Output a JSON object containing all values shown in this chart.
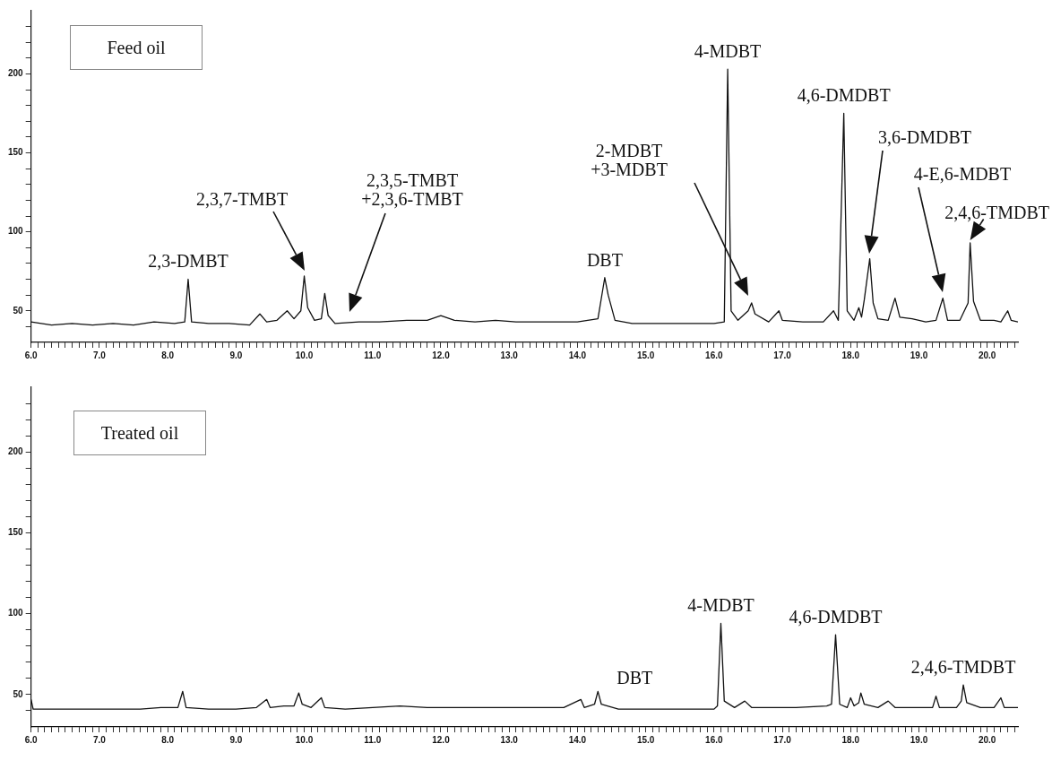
{
  "chart_data": [
    {
      "type": "line",
      "title": "Feed oil",
      "xlim": [
        6.0,
        20.45
      ],
      "ylim": [
        30,
        240
      ],
      "xticks": [
        {
          "value": 6.0,
          "label": "6.0"
        },
        {
          "value": 6.1,
          "label": null
        },
        {
          "value": 6.2,
          "label": null
        },
        {
          "value": 6.3,
          "label": null
        },
        {
          "value": 6.4,
          "label": null
        },
        {
          "value": 6.5,
          "label": null
        },
        {
          "value": 6.6,
          "label": null
        },
        {
          "value": 6.7,
          "label": null
        },
        {
          "value": 6.8,
          "label": null
        },
        {
          "value": 6.9,
          "label": null
        },
        {
          "value": 7.0,
          "label": "7.0"
        },
        {
          "value": 7.1,
          "label": null
        },
        {
          "value": 7.2,
          "label": null
        },
        {
          "value": 7.3,
          "label": null
        },
        {
          "value": 7.4,
          "label": null
        },
        {
          "value": 7.5,
          "label": null
        },
        {
          "value": 7.6,
          "label": null
        },
        {
          "value": 7.7,
          "label": null
        },
        {
          "value": 7.8,
          "label": null
        },
        {
          "value": 7.9,
          "label": null
        },
        {
          "value": 8.0,
          "label": "8.0"
        },
        {
          "value": 8.1,
          "label": null
        },
        {
          "value": 8.2,
          "label": null
        },
        {
          "value": 8.3,
          "label": null
        },
        {
          "value": 8.4,
          "label": null
        },
        {
          "value": 8.5,
          "label": null
        },
        {
          "value": 8.6,
          "label": null
        },
        {
          "value": 8.7,
          "label": null
        },
        {
          "value": 8.8,
          "label": null
        },
        {
          "value": 8.9,
          "label": null
        },
        {
          "value": 9.0,
          "label": "9.0"
        },
        {
          "value": 9.1,
          "label": null
        },
        {
          "value": 9.2,
          "label": null
        },
        {
          "value": 9.3,
          "label": null
        },
        {
          "value": 9.4,
          "label": null
        },
        {
          "value": 9.5,
          "label": null
        },
        {
          "value": 9.6,
          "label": null
        },
        {
          "value": 9.7,
          "label": null
        },
        {
          "value": 9.8,
          "label": null
        },
        {
          "value": 9.9,
          "label": null
        },
        {
          "value": 10.0,
          "label": "10.0"
        },
        {
          "value": 10.1,
          "label": null
        },
        {
          "value": 10.2,
          "label": null
        },
        {
          "value": 10.3,
          "label": null
        },
        {
          "value": 10.4,
          "label": null
        },
        {
          "value": 10.5,
          "label": null
        },
        {
          "value": 10.6,
          "label": null
        },
        {
          "value": 10.7,
          "label": null
        },
        {
          "value": 10.8,
          "label": null
        },
        {
          "value": 10.9,
          "label": null
        },
        {
          "value": 11.0,
          "label": "11.0"
        },
        {
          "value": 11.1,
          "label": null
        },
        {
          "value": 11.2,
          "label": null
        },
        {
          "value": 11.3,
          "label": null
        },
        {
          "value": 11.4,
          "label": null
        },
        {
          "value": 11.5,
          "label": null
        },
        {
          "value": 11.6,
          "label": null
        },
        {
          "value": 11.7,
          "label": null
        },
        {
          "value": 11.8,
          "label": null
        },
        {
          "value": 11.9,
          "label": null
        },
        {
          "value": 12.0,
          "label": "12.0"
        },
        {
          "value": 12.1,
          "label": null
        },
        {
          "value": 12.2,
          "label": null
        },
        {
          "value": 12.3,
          "label": null
        },
        {
          "value": 12.4,
          "label": null
        },
        {
          "value": 12.5,
          "label": null
        },
        {
          "value": 12.6,
          "label": null
        },
        {
          "value": 12.7,
          "label": null
        },
        {
          "value": 12.8,
          "label": null
        },
        {
          "value": 12.9,
          "label": null
        },
        {
          "value": 13.0,
          "label": "13.0"
        },
        {
          "value": 13.1,
          "label": null
        },
        {
          "value": 13.2,
          "label": null
        },
        {
          "value": 13.3,
          "label": null
        },
        {
          "value": 13.4,
          "label": null
        },
        {
          "value": 13.5,
          "label": null
        },
        {
          "value": 13.6,
          "label": null
        },
        {
          "value": 13.7,
          "label": null
        },
        {
          "value": 13.8,
          "label": null
        },
        {
          "value": 13.9,
          "label": null
        },
        {
          "value": 14.0,
          "label": "14.0"
        },
        {
          "value": 14.1,
          "label": null
        },
        {
          "value": 14.2,
          "label": null
        },
        {
          "value": 14.3,
          "label": null
        },
        {
          "value": 14.4,
          "label": null
        },
        {
          "value": 14.5,
          "label": null
        },
        {
          "value": 14.6,
          "label": null
        },
        {
          "value": 14.7,
          "label": null
        },
        {
          "value": 14.8,
          "label": null
        },
        {
          "value": 14.9,
          "label": null
        },
        {
          "value": 15.0,
          "label": "15.0"
        },
        {
          "value": 15.1,
          "label": null
        },
        {
          "value": 15.2,
          "label": null
        },
        {
          "value": 15.3,
          "label": null
        },
        {
          "value": 15.4,
          "label": null
        },
        {
          "value": 15.5,
          "label": null
        },
        {
          "value": 15.6,
          "label": null
        },
        {
          "value": 15.7,
          "label": null
        },
        {
          "value": 15.8,
          "label": null
        },
        {
          "value": 15.9,
          "label": null
        },
        {
          "value": 16.0,
          "label": "16.0"
        },
        {
          "value": 16.1,
          "label": null
        },
        {
          "value": 16.2,
          "label": null
        },
        {
          "value": 16.3,
          "label": null
        },
        {
          "value": 16.4,
          "label": null
        },
        {
          "value": 16.5,
          "label": null
        },
        {
          "value": 16.6,
          "label": null
        },
        {
          "value": 16.7,
          "label": null
        },
        {
          "value": 16.8,
          "label": null
        },
        {
          "value": 16.9,
          "label": null
        },
        {
          "value": 17.0,
          "label": "17.0"
        },
        {
          "value": 17.1,
          "label": null
        },
        {
          "value": 17.2,
          "label": null
        },
        {
          "value": 17.3,
          "label": null
        },
        {
          "value": 17.4,
          "label": null
        },
        {
          "value": 17.5,
          "label": null
        },
        {
          "value": 17.6,
          "label": null
        },
        {
          "value": 17.7,
          "label": null
        },
        {
          "value": 17.8,
          "label": null
        },
        {
          "value": 17.9,
          "label": null
        },
        {
          "value": 18.0,
          "label": "18.0"
        },
        {
          "value": 18.1,
          "label": null
        },
        {
          "value": 18.2,
          "label": null
        },
        {
          "value": 18.3,
          "label": null
        },
        {
          "value": 18.4,
          "label": null
        },
        {
          "value": 18.5,
          "label": null
        },
        {
          "value": 18.6,
          "label": null
        },
        {
          "value": 18.7,
          "label": null
        },
        {
          "value": 18.8,
          "label": null
        },
        {
          "value": 18.9,
          "label": null
        },
        {
          "value": 19.0,
          "label": "19.0"
        },
        {
          "value": 19.1,
          "label": null
        },
        {
          "value": 19.2,
          "label": null
        },
        {
          "value": 19.3,
          "label": null
        },
        {
          "value": 19.4,
          "label": null
        },
        {
          "value": 19.5,
          "label": null
        },
        {
          "value": 19.6,
          "label": null
        },
        {
          "value": 19.7,
          "label": null
        },
        {
          "value": 19.8,
          "label": null
        },
        {
          "value": 19.9,
          "label": null
        },
        {
          "value": 20.0,
          "label": "20.0"
        },
        {
          "value": 20.1,
          "label": null
        },
        {
          "value": 20.2,
          "label": null
        },
        {
          "value": 20.3,
          "label": null
        },
        {
          "value": 20.4,
          "label": null
        }
      ],
      "yticks": [
        {
          "value": 40,
          "label": null
        },
        50,
        {
          "value": 60,
          "label": null
        },
        {
          "value": 70,
          "label": null
        },
        {
          "value": 80,
          "label": null
        },
        {
          "value": 90,
          "label": null
        },
        100,
        {
          "value": 110,
          "label": null
        },
        {
          "value": 120,
          "label": null
        },
        {
          "value": 130,
          "label": null
        },
        {
          "value": 140,
          "label": null
        },
        150,
        {
          "value": 160,
          "label": null
        },
        {
          "value": 170,
          "label": null
        },
        {
          "value": 180,
          "label": null
        },
        {
          "value": 190,
          "label": null
        },
        200,
        {
          "value": 210,
          "label": null
        },
        {
          "value": 220,
          "label": null
        },
        {
          "value": 230,
          "label": null
        }
      ],
      "grid": false,
      "legend": false,
      "marker": "none",
      "line_style": "solid",
      "series": [
        {
          "color": "#111111",
          "x": [
            6.0,
            6.3,
            6.6,
            6.9,
            7.2,
            7.5,
            7.8,
            8.1,
            8.25,
            8.3,
            8.35,
            8.6,
            8.9,
            9.2,
            9.35,
            9.45,
            9.6,
            9.75,
            9.85,
            9.95,
            10.0,
            10.05,
            10.15,
            10.25,
            10.3,
            10.35,
            10.45,
            10.8,
            11.1,
            11.5,
            11.8,
            12.0,
            12.2,
            12.5,
            12.8,
            13.1,
            13.4,
            13.7,
            14.0,
            14.3,
            14.4,
            14.45,
            14.55,
            14.8,
            15.1,
            15.4,
            15.7,
            16.0,
            16.15,
            16.2,
            16.25,
            16.35,
            16.5,
            16.55,
            16.6,
            16.8,
            16.95,
            17.0,
            17.3,
            17.6,
            17.75,
            17.82,
            17.9,
            17.95,
            18.05,
            18.12,
            18.16,
            18.2,
            18.28,
            18.33,
            18.4,
            18.55,
            18.65,
            18.72,
            18.9,
            19.1,
            19.25,
            19.35,
            19.42,
            19.6,
            19.72,
            19.75,
            19.8,
            19.9,
            20.1,
            20.2,
            20.3,
            20.35,
            20.45
          ],
          "values": [
            43,
            41,
            42,
            41,
            42,
            41,
            43,
            42,
            43,
            70,
            43,
            42,
            42,
            41,
            48,
            43,
            44,
            50,
            45,
            50,
            72,
            52,
            44,
            45,
            61,
            47,
            42,
            43,
            43,
            44,
            44,
            47,
            44,
            43,
            44,
            43,
            43,
            43,
            43,
            45,
            71,
            60,
            44,
            42,
            42,
            42,
            42,
            42,
            43,
            203,
            50,
            44,
            50,
            55,
            48,
            43,
            50,
            44,
            43,
            43,
            50,
            44,
            175,
            50,
            44,
            52,
            46,
            57,
            83,
            55,
            45,
            44,
            58,
            46,
            45,
            43,
            44,
            58,
            44,
            44,
            55,
            93,
            56,
            44,
            44,
            43,
            50,
            44,
            43
          ]
        }
      ],
      "annotations": [
        {
          "text": "2,3-DMBT",
          "x": 8.3,
          "y": 70
        },
        "2,3,7-TMBT",
        "2,3,5-TMBT\n+2,3,6-TMBT",
        {
          "text": "DBT",
          "x": 14.4,
          "y": 71
        },
        {
          "text": "4-MDBT",
          "x": 16.2,
          "y": 203
        },
        "2-MDBT\n+3-MDBT",
        {
          "text": "4,6-DMDBT",
          "x": 17.9,
          "y": 175
        },
        "3,6-DMDBT",
        "4-E,6-MDBT",
        {
          "text": "2,4,6-TMDBT",
          "x": 19.75,
          "y": 93
        }
      ]
    },
    {
      "type": "line",
      "title": "Treated oil",
      "xlim": [
        6.0,
        20.45
      ],
      "ylim": [
        30,
        240
      ],
      "xticks": [
        {
          "value": 6.0,
          "label": "6.0"
        },
        {
          "value": 6.1,
          "label": null
        },
        {
          "value": 6.2,
          "label": null
        },
        {
          "value": 6.3,
          "label": null
        },
        {
          "value": 6.4,
          "label": null
        },
        {
          "value": 6.5,
          "label": null
        },
        {
          "value": 6.6,
          "label": null
        },
        {
          "value": 6.7,
          "label": null
        },
        {
          "value": 6.8,
          "label": null
        },
        {
          "value": 6.9,
          "label": null
        },
        {
          "value": 7.0,
          "label": "7.0"
        },
        {
          "value": 7.1,
          "label": null
        },
        {
          "value": 7.2,
          "label": null
        },
        {
          "value": 7.3,
          "label": null
        },
        {
          "value": 7.4,
          "label": null
        },
        {
          "value": 7.5,
          "label": null
        },
        {
          "value": 7.6,
          "label": null
        },
        {
          "value": 7.7,
          "label": null
        },
        {
          "value": 7.8,
          "label": null
        },
        {
          "value": 7.9,
          "label": null
        },
        {
          "value": 8.0,
          "label": "8.0"
        },
        {
          "value": 8.1,
          "label": null
        },
        {
          "value": 8.2,
          "label": null
        },
        {
          "value": 8.3,
          "label": null
        },
        {
          "value": 8.4,
          "label": null
        },
        {
          "value": 8.5,
          "label": null
        },
        {
          "value": 8.6,
          "label": null
        },
        {
          "value": 8.7,
          "label": null
        },
        {
          "value": 8.8,
          "label": null
        },
        {
          "value": 8.9,
          "label": null
        },
        {
          "value": 9.0,
          "label": "9.0"
        },
        {
          "value": 9.1,
          "label": null
        },
        {
          "value": 9.2,
          "label": null
        },
        {
          "value": 9.3,
          "label": null
        },
        {
          "value": 9.4,
          "label": null
        },
        {
          "value": 9.5,
          "label": null
        },
        {
          "value": 9.6,
          "label": null
        },
        {
          "value": 9.7,
          "label": null
        },
        {
          "value": 9.8,
          "label": null
        },
        {
          "value": 9.9,
          "label": null
        },
        {
          "value": 10.0,
          "label": "10.0"
        },
        {
          "value": 10.1,
          "label": null
        },
        {
          "value": 10.2,
          "label": null
        },
        {
          "value": 10.3,
          "label": null
        },
        {
          "value": 10.4,
          "label": null
        },
        {
          "value": 10.5,
          "label": null
        },
        {
          "value": 10.6,
          "label": null
        },
        {
          "value": 10.7,
          "label": null
        },
        {
          "value": 10.8,
          "label": null
        },
        {
          "value": 10.9,
          "label": null
        },
        {
          "value": 11.0,
          "label": "11.0"
        },
        {
          "value": 11.1,
          "label": null
        },
        {
          "value": 11.2,
          "label": null
        },
        {
          "value": 11.3,
          "label": null
        },
        {
          "value": 11.4,
          "label": null
        },
        {
          "value": 11.5,
          "label": null
        },
        {
          "value": 11.6,
          "label": null
        },
        {
          "value": 11.7,
          "label": null
        },
        {
          "value": 11.8,
          "label": null
        },
        {
          "value": 11.9,
          "label": null
        },
        {
          "value": 12.0,
          "label": "12.0"
        },
        {
          "value": 12.1,
          "label": null
        },
        {
          "value": 12.2,
          "label": null
        },
        {
          "value": 12.3,
          "label": null
        },
        {
          "value": 12.4,
          "label": null
        },
        {
          "value": 12.5,
          "label": null
        },
        {
          "value": 12.6,
          "label": null
        },
        {
          "value": 12.7,
          "label": null
        },
        {
          "value": 12.8,
          "label": null
        },
        {
          "value": 12.9,
          "label": null
        },
        {
          "value": 13.0,
          "label": "13.0"
        },
        {
          "value": 13.1,
          "label": null
        },
        {
          "value": 13.2,
          "label": null
        },
        {
          "value": 13.3,
          "label": null
        },
        {
          "value": 13.4,
          "label": null
        },
        {
          "value": 13.5,
          "label": null
        },
        {
          "value": 13.6,
          "label": null
        },
        {
          "value": 13.7,
          "label": null
        },
        {
          "value": 13.8,
          "label": null
        },
        {
          "value": 13.9,
          "label": null
        },
        {
          "value": 14.0,
          "label": "14.0"
        },
        {
          "value": 14.1,
          "label": null
        },
        {
          "value": 14.2,
          "label": null
        },
        {
          "value": 14.3,
          "label": null
        },
        {
          "value": 14.4,
          "label": null
        },
        {
          "value": 14.5,
          "label": null
        },
        {
          "value": 14.6,
          "label": null
        },
        {
          "value": 14.7,
          "label": null
        },
        {
          "value": 14.8,
          "label": null
        },
        {
          "value": 14.9,
          "label": null
        },
        {
          "value": 15.0,
          "label": "15.0"
        },
        {
          "value": 15.1,
          "label": null
        },
        {
          "value": 15.2,
          "label": null
        },
        {
          "value": 15.3,
          "label": null
        },
        {
          "value": 15.4,
          "label": null
        },
        {
          "value": 15.5,
          "label": null
        },
        {
          "value": 15.6,
          "label": null
        },
        {
          "value": 15.7,
          "label": null
        },
        {
          "value": 15.8,
          "label": null
        },
        {
          "value": 15.9,
          "label": null
        },
        {
          "value": 16.0,
          "label": "16.0"
        },
        {
          "value": 16.1,
          "label": null
        },
        {
          "value": 16.2,
          "label": null
        },
        {
          "value": 16.3,
          "label": null
        },
        {
          "value": 16.4,
          "label": null
        },
        {
          "value": 16.5,
          "label": null
        },
        {
          "value": 16.6,
          "label": null
        },
        {
          "value": 16.7,
          "label": null
        },
        {
          "value": 16.8,
          "label": null
        },
        {
          "value": 16.9,
          "label": null
        },
        {
          "value": 17.0,
          "label": "17.0"
        },
        {
          "value": 17.1,
          "label": null
        },
        {
          "value": 17.2,
          "label": null
        },
        {
          "value": 17.3,
          "label": null
        },
        {
          "value": 17.4,
          "label": null
        },
        {
          "value": 17.5,
          "label": null
        },
        {
          "value": 17.6,
          "label": null
        },
        {
          "value": 17.7,
          "label": null
        },
        {
          "value": 17.8,
          "label": null
        },
        {
          "value": 17.9,
          "label": null
        },
        {
          "value": 18.0,
          "label": "18.0"
        },
        {
          "value": 18.1,
          "label": null
        },
        {
          "value": 18.2,
          "label": null
        },
        {
          "value": 18.3,
          "label": null
        },
        {
          "value": 18.4,
          "label": null
        },
        {
          "value": 18.5,
          "label": null
        },
        {
          "value": 18.6,
          "label": null
        },
        {
          "value": 18.7,
          "label": null
        },
        {
          "value": 18.8,
          "label": null
        },
        {
          "value": 18.9,
          "label": null
        },
        {
          "value": 19.0,
          "label": "19.0"
        },
        {
          "value": 19.1,
          "label": null
        },
        {
          "value": 19.2,
          "label": null
        },
        {
          "value": 19.3,
          "label": null
        },
        {
          "value": 19.4,
          "label": null
        },
        {
          "value": 19.5,
          "label": null
        },
        {
          "value": 19.6,
          "label": null
        },
        {
          "value": 19.7,
          "label": null
        },
        {
          "value": 19.8,
          "label": null
        },
        {
          "value": 19.9,
          "label": null
        },
        {
          "value": 20.0,
          "label": "20.0"
        },
        {
          "value": 20.1,
          "label": null
        },
        {
          "value": 20.2,
          "label": null
        },
        {
          "value": 20.3,
          "label": null
        },
        {
          "value": 20.4,
          "label": null
        }
      ],
      "yticks": [
        {
          "value": 40,
          "label": null
        },
        50,
        {
          "value": 60,
          "label": null
        },
        {
          "value": 70,
          "label": null
        },
        {
          "value": 80,
          "label": null
        },
        {
          "value": 90,
          "label": null
        },
        100,
        {
          "value": 110,
          "label": null
        },
        {
          "value": 120,
          "label": null
        },
        {
          "value": 130,
          "label": null
        },
        {
          "value": 140,
          "label": null
        },
        150,
        {
          "value": 160,
          "label": null
        },
        {
          "value": 170,
          "label": null
        },
        {
          "value": 180,
          "label": null
        },
        {
          "value": 190,
          "label": null
        },
        200,
        {
          "value": 210,
          "label": null
        },
        {
          "value": 220,
          "label": null
        },
        {
          "value": 230,
          "label": null
        }
      ],
      "grid": false,
      "legend": false,
      "marker": "none",
      "line_style": "solid",
      "series": [
        {
          "color": "#111111",
          "x": [
            6.0,
            6.03,
            6.4,
            6.8,
            7.2,
            7.6,
            7.9,
            8.15,
            8.22,
            8.27,
            8.6,
            9.0,
            9.3,
            9.45,
            9.5,
            9.7,
            9.85,
            9.92,
            9.97,
            10.1,
            10.25,
            10.3,
            10.6,
            11.0,
            11.4,
            11.8,
            12.2,
            12.6,
            13.0,
            13.4,
            13.8,
            14.05,
            14.1,
            14.25,
            14.3,
            14.35,
            14.6,
            15.0,
            15.4,
            15.8,
            16.0,
            16.05,
            16.1,
            16.15,
            16.3,
            16.45,
            16.55,
            16.85,
            17.2,
            17.65,
            17.72,
            17.78,
            17.84,
            17.95,
            18.0,
            18.05,
            18.12,
            18.15,
            18.2,
            18.4,
            18.55,
            18.65,
            19.0,
            19.2,
            19.25,
            19.3,
            19.55,
            19.62,
            19.65,
            19.7,
            19.9,
            20.1,
            20.2,
            20.25,
            20.45
          ],
          "values": [
            47,
            41,
            41,
            41,
            41,
            41,
            42,
            42,
            52,
            42,
            41,
            41,
            42,
            47,
            42,
            43,
            43,
            51,
            44,
            42,
            48,
            42,
            41,
            42,
            43,
            42,
            42,
            42,
            42,
            42,
            42,
            47,
            42,
            44,
            52,
            44,
            41,
            41,
            41,
            41,
            41,
            43,
            94,
            46,
            42,
            46,
            42,
            42,
            42,
            43,
            44,
            87,
            44,
            42,
            48,
            43,
            45,
            51,
            44,
            42,
            46,
            42,
            42,
            42,
            49,
            42,
            42,
            46,
            56,
            45,
            42,
            42,
            48,
            42,
            42
          ]
        }
      ],
      "annotations": [
        {
          "text": "DBT",
          "x": 14.3,
          "y": 52
        },
        {
          "text": "4-MDBT",
          "x": 16.1,
          "y": 94
        },
        {
          "text": "4,6-DMDBT",
          "x": 17.78,
          "y": 87
        },
        {
          "text": "2,4,6-TMDBT",
          "x": 19.65,
          "y": 56
        }
      ]
    }
  ]
}
